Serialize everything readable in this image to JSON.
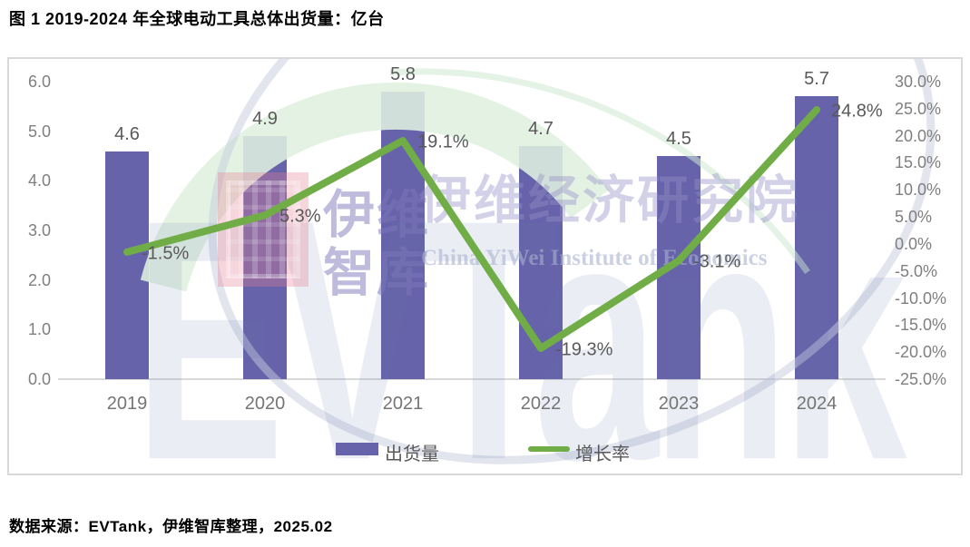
{
  "title": "图 1 2019-2024 年全球电动工具总体出货量：亿台",
  "source": "数据来源：EVTank，伊维智库整理，2025.02",
  "legend": {
    "bars": "出货量",
    "line": "增长率"
  },
  "watermark": {
    "logo_text": "EVTank",
    "brand_cn_1": "伊维",
    "brand_cn_2": "智库",
    "institute_cn": "伊维经济研究院",
    "institute_en": "China YiWei Institute of Economics"
  },
  "chart_data": {
    "type": "combo-bar-line",
    "title": "图 1 2019-2024 年全球电动工具总体出货量：亿台",
    "categories": [
      "2019",
      "2020",
      "2021",
      "2022",
      "2023",
      "2024"
    ],
    "series": [
      {
        "name": "出货量",
        "type": "bar",
        "axis": "left",
        "unit": "亿台",
        "color": "#6763AA",
        "values": [
          4.6,
          4.9,
          5.8,
          4.7,
          4.5,
          5.7
        ],
        "labels": [
          "4.6",
          "4.9",
          "5.8",
          "4.7",
          "4.5",
          "5.7"
        ]
      },
      {
        "name": "增长率",
        "type": "line",
        "axis": "right",
        "unit": "%",
        "color": "#70AD47",
        "values": [
          -1.5,
          5.3,
          19.1,
          -19.3,
          -3.1,
          24.8
        ],
        "labels": [
          "-1.5%",
          "5.3%",
          "19.1%",
          "-19.3%",
          "-3.1%",
          "24.8%"
        ]
      }
    ],
    "left_axis": {
      "min": 0,
      "max": 6,
      "step": 1,
      "tick_labels": [
        "6.0",
        "5.0",
        "4.0",
        "3.0",
        "2.0",
        "1.0",
        "0.0"
      ]
    },
    "right_axis": {
      "min": -25,
      "max": 30,
      "step": 5,
      "tick_labels": [
        "30.0%",
        "25.0%",
        "20.0%",
        "15.0%",
        "10.0%",
        "5.0%",
        "0.0%",
        "-5.0%",
        "-10.0%",
        "-15.0%",
        "-20.0%",
        "-25.0%"
      ]
    },
    "grid": "off",
    "legend_position": "bottom-center"
  }
}
